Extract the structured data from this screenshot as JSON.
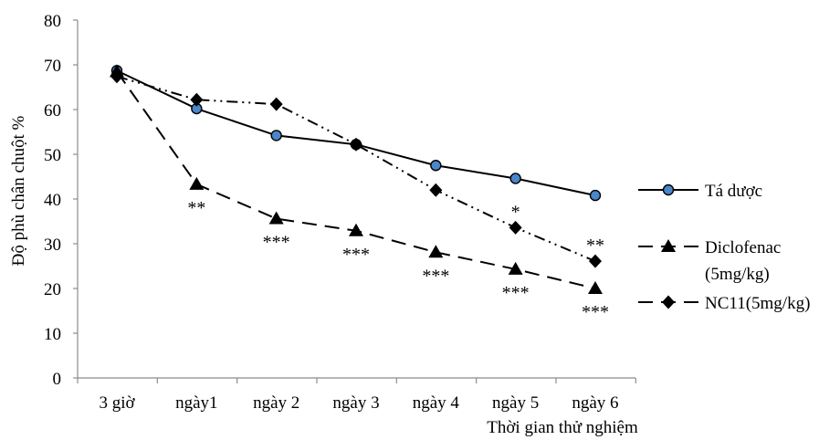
{
  "chart_data": {
    "type": "line",
    "title": "",
    "xlabel": "Thời gian thử nghiệm",
    "ylabel": "Độ phù chân chuột %",
    "ylim": [
      0,
      80
    ],
    "yticks": [
      "0",
      "10",
      "20",
      "30",
      "40",
      "50",
      "60",
      "70",
      "80"
    ],
    "categories": [
      "3 giờ",
      "ngày1",
      "ngày 2",
      "ngày 3",
      "ngày 4",
      "ngày 5",
      "ngày 6"
    ],
    "grid": false,
    "legend_position": "right",
    "series": [
      {
        "name": "Tá dược",
        "values": [
          68.7,
          60.2,
          54.2,
          52.2,
          47.5,
          44.6,
          40.8
        ],
        "line_style": "solid",
        "marker": "circle",
        "marker_fill": "#4a86c8",
        "significance": [
          "",
          "",
          "",
          "",
          "",
          "",
          ""
        ]
      },
      {
        "name": "Diclofenac (5mg/kg)",
        "legend_lines": [
          "Diclofenac",
          "(5mg/kg)"
        ],
        "values": [
          68.5,
          43.3,
          35.6,
          32.9,
          28.1,
          24.3,
          20.0
        ],
        "line_style": "dashed",
        "marker": "triangle",
        "marker_fill": "#000000",
        "significance": [
          "",
          "**",
          "***",
          "***",
          "***",
          "***",
          "***"
        ]
      },
      {
        "name": "NC11(5mg/kg)",
        "values": [
          67.4,
          62.2,
          61.2,
          52.2,
          42.0,
          33.6,
          26.1
        ],
        "line_style": "dash-dot-dot",
        "marker": "diamond",
        "marker_fill": "#000000",
        "significance": [
          "",
          "",
          "",
          "",
          "",
          "*",
          "**"
        ]
      }
    ]
  }
}
